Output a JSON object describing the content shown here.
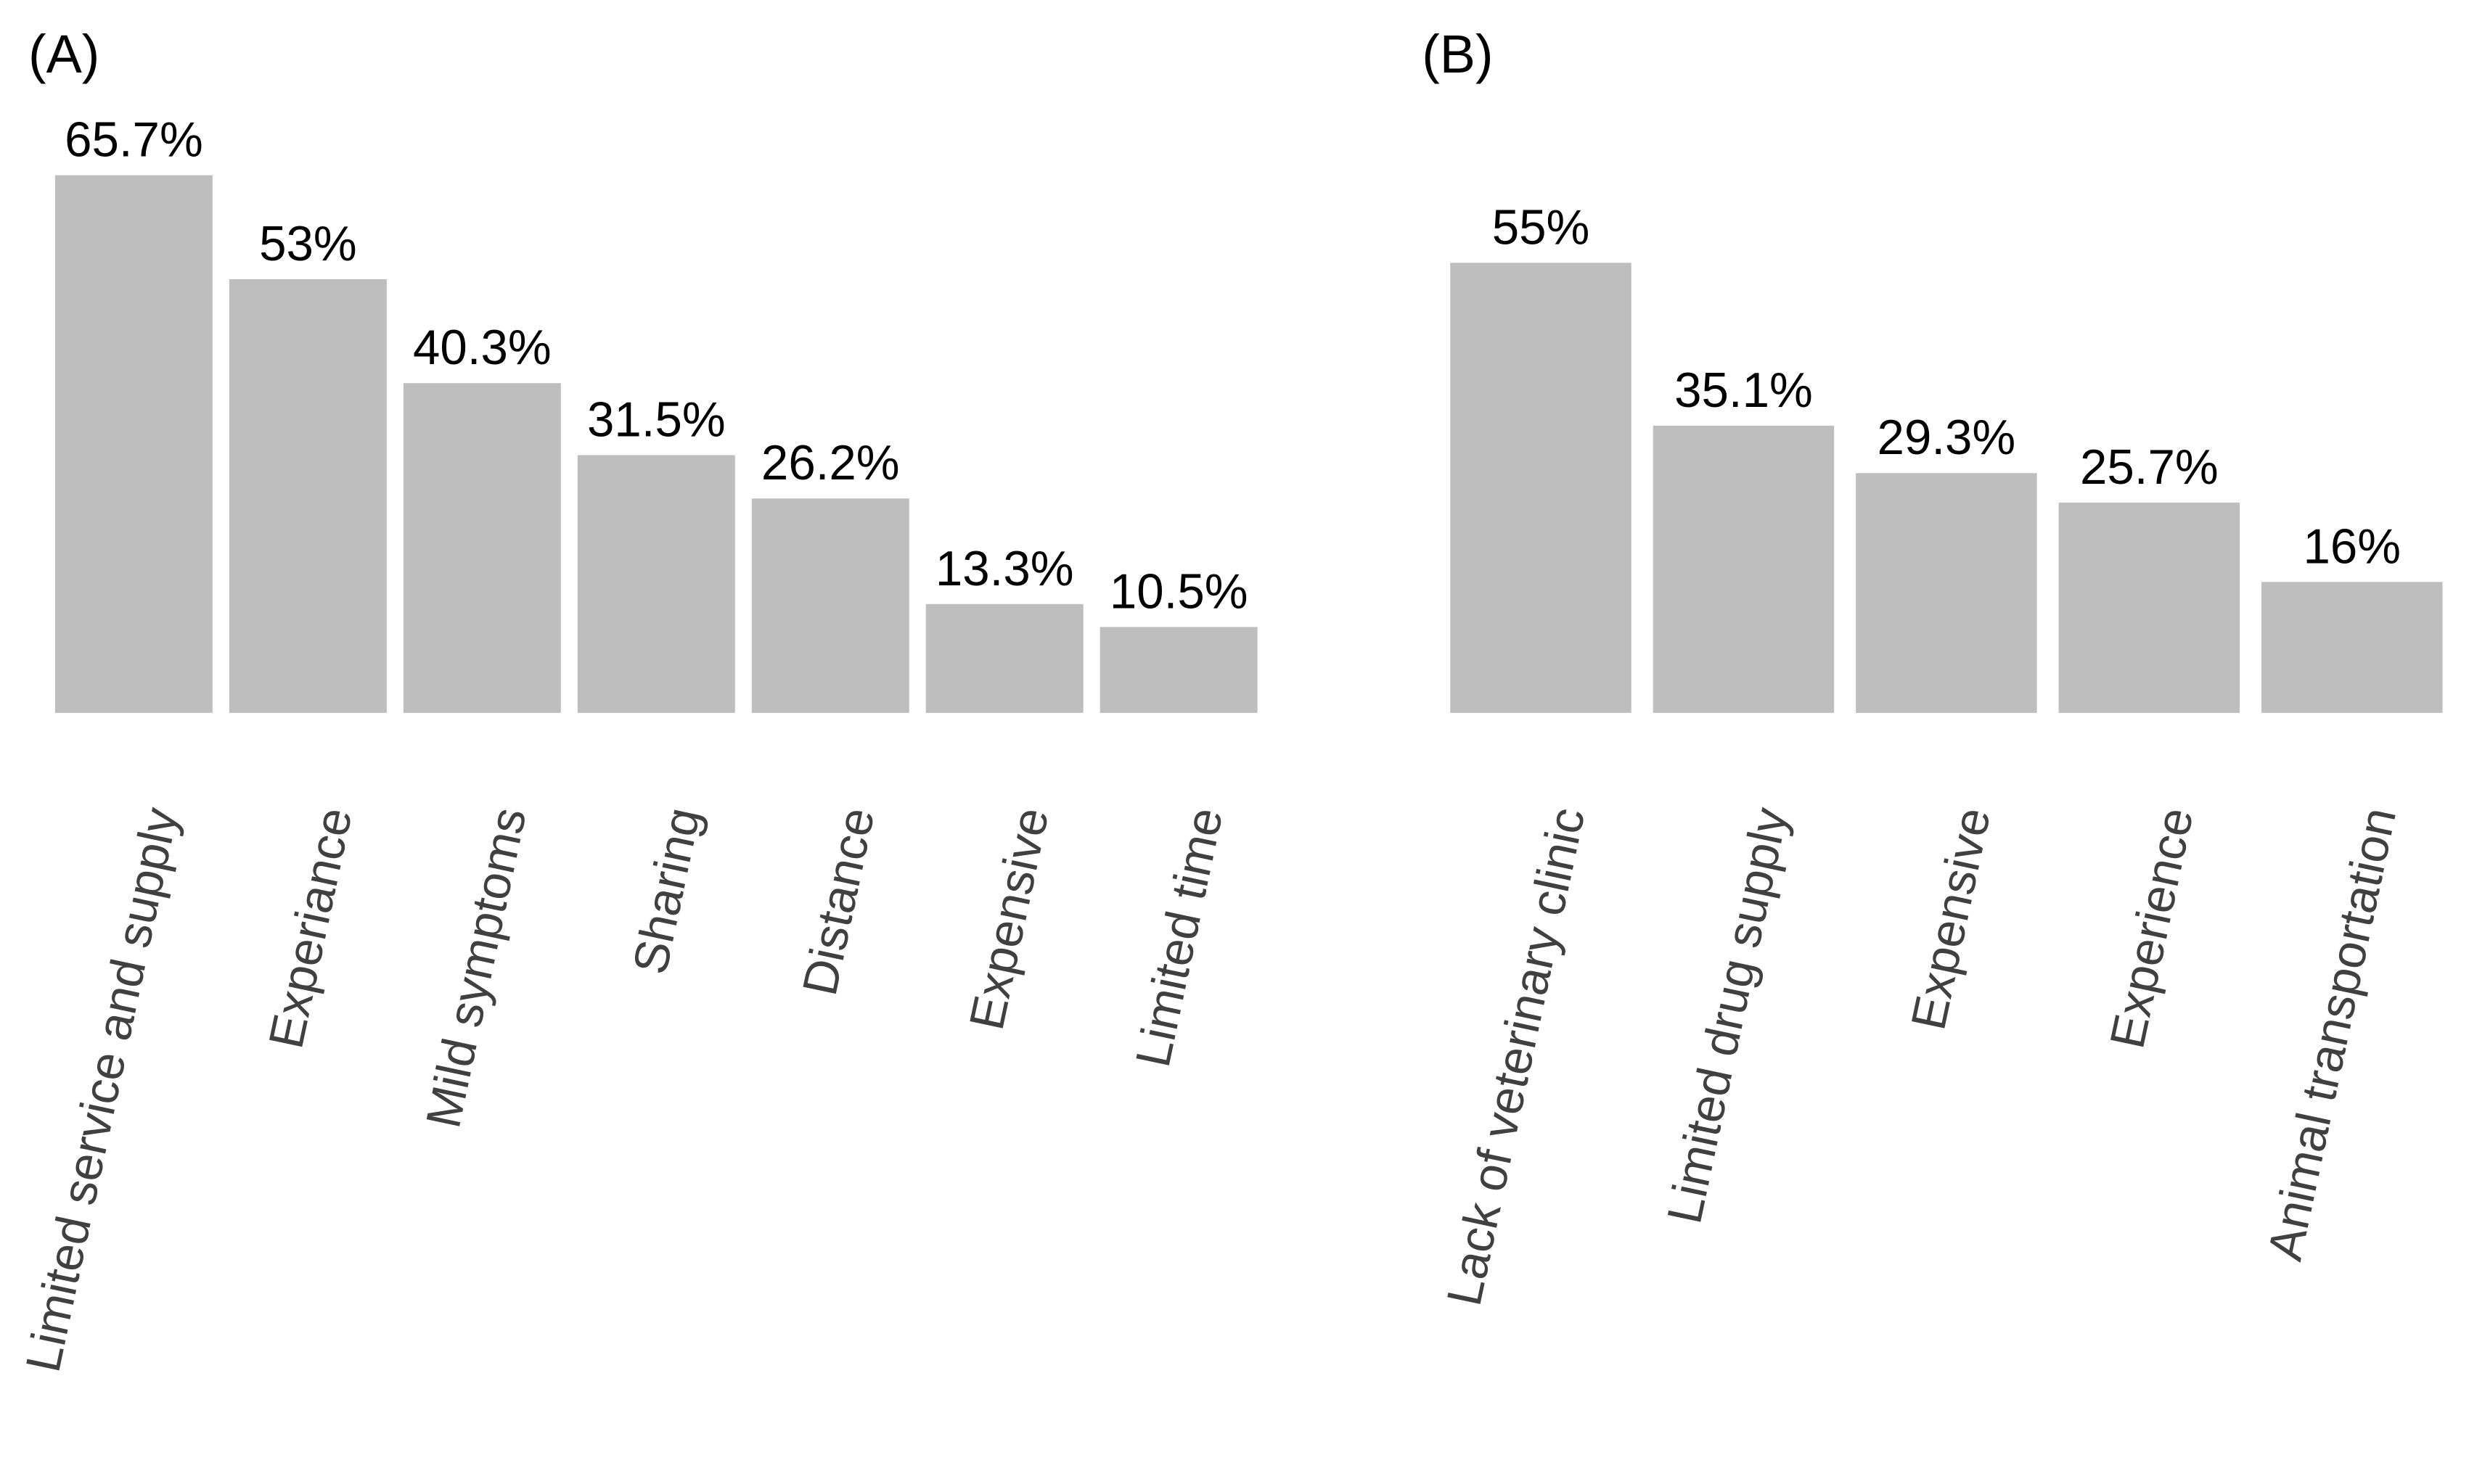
{
  "chart_data": [
    {
      "type": "bar",
      "title": "(A)",
      "categories": [
        "Limited service and supply",
        "Experiance",
        "Mild symptoms",
        "Sharing",
        "Distance",
        "Expensive",
        "Limited time"
      ],
      "values": [
        65.7,
        53,
        40.3,
        31.5,
        26.2,
        13.3,
        10.5
      ],
      "value_labels": [
        "65.7%",
        "53%",
        "40.3%",
        "31.5%",
        "26.2%",
        "13.3%",
        "10.5%"
      ],
      "color": "#bebebe"
    },
    {
      "type": "bar",
      "title": "(B)",
      "categories": [
        "Lack of veterinary clinic",
        "Limited drug supply",
        "Expensive",
        "Experience",
        "Animal transportation"
      ],
      "values": [
        55,
        35.1,
        29.3,
        25.7,
        16
      ],
      "value_labels": [
        "55%",
        "35.1%",
        "29.3%",
        "25.7%",
        "16%"
      ],
      "color": "#bebebe"
    }
  ]
}
